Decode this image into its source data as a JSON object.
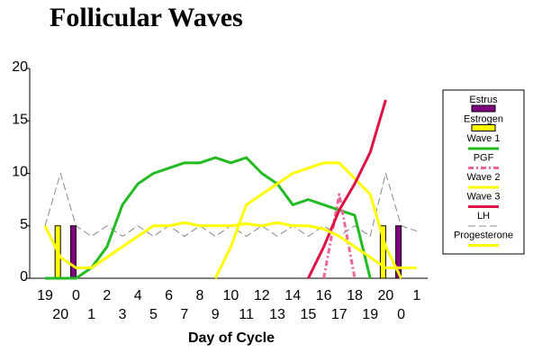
{
  "chart_data": {
    "type": "combo",
    "title": "Follicular Waves",
    "x_label": "Day of Cycle",
    "categories": [
      "19",
      "20",
      "0",
      "1",
      "2",
      "3",
      "4",
      "5",
      "6",
      "7",
      "8",
      "9",
      "10",
      "11",
      "12",
      "13",
      "14",
      "15",
      "16",
      "17",
      "18",
      "19",
      "20",
      "0",
      "1"
    ],
    "ylim": [
      0,
      20
    ],
    "yticks": [
      0,
      5,
      10,
      15,
      20
    ],
    "series": [
      {
        "name": "Estrus",
        "type": "bar",
        "color": "#800080",
        "values": [
          null,
          null,
          5,
          null,
          null,
          null,
          null,
          null,
          null,
          null,
          null,
          null,
          null,
          null,
          null,
          null,
          null,
          null,
          null,
          null,
          null,
          null,
          null,
          5,
          null
        ]
      },
      {
        "name": "Estrogen",
        "type": "bar",
        "color": "#ffff00",
        "values": [
          null,
          5,
          null,
          null,
          null,
          null,
          null,
          null,
          null,
          null,
          null,
          null,
          null,
          null,
          null,
          null,
          null,
          null,
          null,
          null,
          null,
          null,
          5,
          null,
          null
        ]
      },
      {
        "name": "Wave 1",
        "type": "line",
        "color": "#22bb22",
        "values": [
          0,
          0,
          0,
          1,
          3,
          7,
          9,
          10,
          10.5,
          11,
          11,
          11.5,
          11,
          11.5,
          10,
          9,
          7,
          7.5,
          7,
          6.5,
          6,
          0,
          null,
          null,
          null
        ]
      },
      {
        "name": "PGF",
        "type": "line",
        "style": "dashdot",
        "color": "#ee6699",
        "values": [
          null,
          null,
          null,
          null,
          null,
          null,
          null,
          null,
          null,
          null,
          null,
          null,
          null,
          null,
          null,
          null,
          null,
          null,
          0,
          8,
          0,
          null,
          null,
          null,
          null
        ]
      },
      {
        "name": "Wave 2",
        "type": "line",
        "color": "#ffff00",
        "values": [
          null,
          null,
          null,
          null,
          null,
          null,
          null,
          null,
          null,
          null,
          null,
          0,
          3,
          7,
          8,
          9,
          10,
          10.5,
          11,
          11,
          9.5,
          8,
          3,
          0,
          null
        ]
      },
      {
        "name": "Wave 3",
        "type": "line",
        "color": "#dd1144",
        "values": [
          null,
          null,
          null,
          null,
          null,
          null,
          null,
          null,
          null,
          null,
          null,
          null,
          null,
          null,
          null,
          null,
          null,
          0,
          3,
          6.5,
          9,
          12,
          17,
          null,
          null
        ]
      },
      {
        "name": "LH",
        "type": "line",
        "style": "dashed",
        "color": "#888888",
        "values": [
          5,
          10,
          5,
          4,
          5,
          4,
          5,
          4,
          5,
          4,
          5,
          4,
          5,
          4,
          5,
          4,
          5,
          4,
          5,
          4,
          5,
          4,
          10,
          5,
          4.5
        ]
      },
      {
        "name": "Progesterone",
        "type": "line",
        "color": "#ffff00",
        "values": [
          5,
          2,
          1,
          1,
          2,
          3,
          4,
          5,
          5,
          5.3,
          5,
          5,
          5,
          5.2,
          5,
          5.3,
          5,
          5,
          4.7,
          4,
          3,
          2,
          1,
          1,
          1
        ]
      }
    ]
  }
}
